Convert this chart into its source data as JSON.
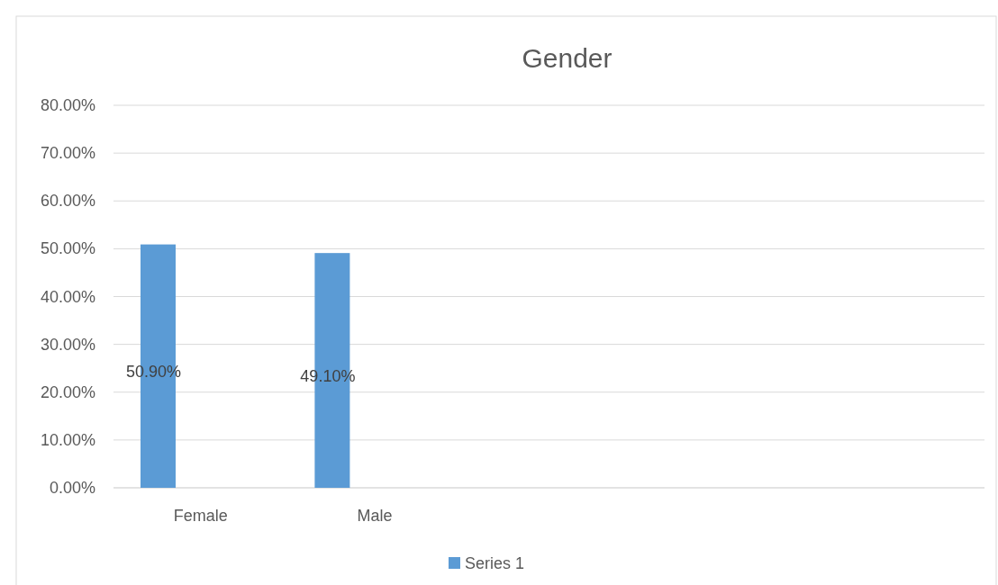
{
  "chart_data": {
    "type": "bar",
    "title": "Gender",
    "categories": [
      "Female",
      "Male",
      null,
      null,
      null
    ],
    "series": [
      {
        "name": "Series 1",
        "color": "#5b9bd5",
        "values": [
          50.9,
          49.1,
          null,
          null,
          null
        ],
        "value_labels": [
          "50.90%",
          "49.10%",
          null,
          null,
          null
        ]
      }
    ],
    "ylim": [
      0,
      80
    ],
    "yticks": [
      {
        "value": 0,
        "label": "0.00%"
      },
      {
        "value": 10,
        "label": "10.00%"
      },
      {
        "value": 20,
        "label": "20.00%"
      },
      {
        "value": 30,
        "label": "30.00%"
      },
      {
        "value": 40,
        "label": "40.00%"
      },
      {
        "value": 50,
        "label": "50.00%"
      },
      {
        "value": 60,
        "label": "60.00%"
      },
      {
        "value": 70,
        "label": "70.00%"
      },
      {
        "value": 80,
        "label": "80.00%"
      }
    ],
    "grid": "y",
    "legend": "bottom"
  }
}
